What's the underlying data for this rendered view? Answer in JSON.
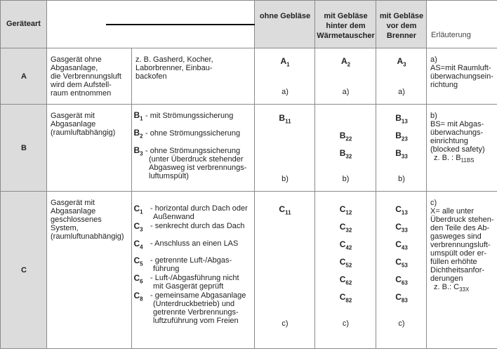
{
  "header": {
    "col_type": "Geräteart",
    "col_ohne": [
      "ohne Gebläse"
    ],
    "col_hinter": [
      "mit Gebläse",
      "hinter dem",
      "Wärmetauscher"
    ],
    "col_vor": [
      "mit Gebläse",
      "vor dem",
      "Brenner"
    ],
    "col_note": "Erläuterung"
  },
  "rows": {
    "A": {
      "label": "A",
      "desc": [
        "Gasgerät ohne",
        "Abgasanlage,",
        "die Verbrennungsluft",
        "wird dem Aufstell-",
        "raum entnommen"
      ],
      "examples": [
        "z. B. Gasherd, Kocher,",
        "Laborbrenner, Einbau-",
        "backofen"
      ],
      "codes": [
        {
          "l": "A",
          "s": "1"
        },
        {
          "l": "A",
          "s": "2"
        },
        {
          "l": "A",
          "s": "3"
        }
      ],
      "ref": "a)",
      "note": [
        "a)",
        "AS=mit Raumluft-",
        "überwachungsein-",
        "richtung"
      ]
    },
    "B": {
      "label": "B",
      "desc": [
        "Gasgerät mit",
        "Abgasanlage",
        "(raumluftabhängig)"
      ],
      "sub": [
        {
          "l": "B",
          "s": "1",
          "text": [
            "- mit Strömungssicherung"
          ]
        },
        {
          "l": "B",
          "s": "2",
          "text": [
            "- ohne Strömungssicherung"
          ]
        },
        {
          "l": "B",
          "s": "3",
          "text": [
            "- ohne Strömungssicherung",
            "(unter Überdruck stehender",
            "Abgasweg ist verbrennungs-",
            "luftumspült)"
          ]
        }
      ],
      "ohne": [
        {
          "l": "B",
          "s": "11"
        }
      ],
      "hinter": [
        {
          "l": "B",
          "s": "22"
        },
        {
          "l": "B",
          "s": "32"
        }
      ],
      "vor": [
        {
          "l": "B",
          "s": "13"
        },
        {
          "l": "B",
          "s": "23"
        },
        {
          "l": "B",
          "s": "33"
        }
      ],
      "ref": "b)",
      "note": [
        "b)",
        "BS= mit Abgas-",
        "überwachungs-",
        "einrichtung",
        "(blocked safety)"
      ],
      "note_example": {
        "prefix": "z. B. : ",
        "l": "B",
        "s": "11BS"
      }
    },
    "C": {
      "label": "C",
      "desc": [
        "Gasgerät mit",
        "Abgasanlage",
        "geschlossenes",
        "System,",
        "(raumluftunabhängig)"
      ],
      "sub": [
        {
          "l": "C",
          "s": "1",
          "text": [
            "- horizontal durch Dach oder",
            "Außenwand"
          ]
        },
        {
          "l": "C",
          "s": "3",
          "text": [
            "- senkrecht durch das Dach"
          ]
        },
        {
          "l": "C",
          "s": "4",
          "text": [
            "- Anschluss an einen LAS"
          ]
        },
        {
          "l": "C",
          "s": "5",
          "text": [
            "- getrennte Luft-/Abgas-",
            "führung"
          ]
        },
        {
          "l": "C",
          "s": "6",
          "text": [
            "- Luft-/Abgasführung nicht",
            "mit Gasgerät geprüft"
          ]
        },
        {
          "l": "C",
          "s": "8",
          "text": [
            "- gemeinsame Abgasanlage",
            "(Unterdruckbetrieb) und",
            "getrennte Verbrennungs-",
            "luftzuführung vom Freien"
          ]
        }
      ],
      "ohne": [
        {
          "l": "C",
          "s": "11"
        }
      ],
      "hinter": [
        {
          "l": "C",
          "s": "12"
        },
        {
          "l": "C",
          "s": "32"
        },
        {
          "l": "C",
          "s": "42"
        },
        {
          "l": "C",
          "s": "52"
        },
        {
          "l": "C",
          "s": "62"
        },
        {
          "l": "C",
          "s": "82"
        }
      ],
      "vor": [
        {
          "l": "C",
          "s": "13"
        },
        {
          "l": "C",
          "s": "33"
        },
        {
          "l": "C",
          "s": "43"
        },
        {
          "l": "C",
          "s": "53"
        },
        {
          "l": "C",
          "s": "63"
        },
        {
          "l": "C",
          "s": "83"
        }
      ],
      "ref": "c)",
      "note": [
        "c)",
        "X= alle unter",
        "Überdruck stehen-",
        "den Teile des Ab-",
        "gasweges sind",
        "verbrennungsluft-",
        "umspült oder er-",
        "füllen erhöhte",
        "Dichtheitsanfor-",
        "derungen"
      ],
      "note_example": {
        "prefix": "z. B.: ",
        "l": "C",
        "s": "33X"
      }
    }
  }
}
